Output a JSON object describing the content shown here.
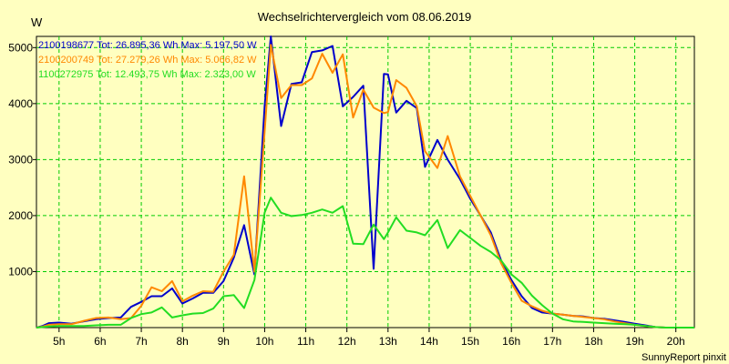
{
  "chart_data": {
    "type": "line",
    "title": "Wechselrichtervergleich vom 08.06.2019",
    "ylabel": "W",
    "xlabel": "",
    "xlim": [
      4.45,
      20.45
    ],
    "ylim": [
      0,
      5200
    ],
    "grid": true,
    "legend_position": "top-left",
    "x_ticks": [
      5,
      6,
      7,
      8,
      9,
      10,
      11,
      12,
      13,
      14,
      15,
      16,
      17,
      18,
      19,
      20
    ],
    "x_tick_labels": [
      "5h",
      "6h",
      "7h",
      "8h",
      "9h",
      "10h",
      "11h",
      "12h",
      "13h",
      "14h",
      "15h",
      "16h",
      "17h",
      "18h",
      "19h",
      "20h"
    ],
    "y_ticks": [
      1000,
      2000,
      3000,
      4000,
      5000
    ],
    "y_tick_labels": [
      "1000",
      "2000",
      "3000",
      "4000",
      "5000"
    ],
    "series": [
      {
        "name": "2100198677 Tot: 26.895,36 Wh Max: 5.197,50 W",
        "color": "#0000cc",
        "x": [
          4.45,
          4.6,
          4.75,
          5.0,
          5.3,
          5.6,
          5.9,
          6.2,
          6.5,
          6.75,
          7.0,
          7.25,
          7.5,
          7.75,
          8.0,
          8.25,
          8.5,
          8.75,
          9.0,
          9.25,
          9.5,
          9.75,
          10.0,
          10.15,
          10.4,
          10.65,
          10.9,
          11.15,
          11.4,
          11.65,
          11.9,
          12.15,
          12.4,
          12.65,
          12.9,
          13.0,
          13.2,
          13.45,
          13.7,
          13.9,
          14.2,
          14.45,
          14.75,
          15.0,
          15.25,
          15.5,
          15.75,
          16.0,
          16.25,
          16.5,
          16.75,
          17.0,
          17.25,
          17.5,
          17.75,
          18.0,
          18.25,
          18.5,
          18.75,
          19.0,
          19.25,
          19.5,
          19.75,
          20.0,
          20.25,
          20.45
        ],
        "values": [
          0,
          30,
          80,
          90,
          70,
          110,
          150,
          170,
          180,
          370,
          460,
          560,
          560,
          700,
          430,
          520,
          620,
          620,
          830,
          1250,
          1830,
          950,
          3950,
          5200,
          3600,
          4350,
          4380,
          4920,
          4950,
          5030,
          3950,
          4120,
          4320,
          1050,
          4530,
          4520,
          3840,
          4050,
          3920,
          2870,
          3350,
          3000,
          2650,
          2300,
          2000,
          1700,
          1200,
          850,
          560,
          350,
          270,
          250,
          230,
          210,
          200,
          170,
          160,
          130,
          100,
          70,
          40,
          10,
          0,
          0,
          0,
          0
        ]
      },
      {
        "name": "2100200749 Tot: 27.279,26 Wh Max: 5.066,82 W",
        "color": "#ff8800",
        "x": [
          4.45,
          4.6,
          4.75,
          5.0,
          5.3,
          5.6,
          5.9,
          6.2,
          6.5,
          6.75,
          7.0,
          7.25,
          7.5,
          7.75,
          8.0,
          8.25,
          8.5,
          8.75,
          9.0,
          9.25,
          9.5,
          9.75,
          10.0,
          10.15,
          10.4,
          10.65,
          10.9,
          11.15,
          11.4,
          11.65,
          11.9,
          12.15,
          12.4,
          12.65,
          12.9,
          13.0,
          13.2,
          13.45,
          13.7,
          13.9,
          14.2,
          14.45,
          14.75,
          15.0,
          15.25,
          15.5,
          15.75,
          16.0,
          16.25,
          16.5,
          16.75,
          17.0,
          17.25,
          17.5,
          17.75,
          18.0,
          18.25,
          18.5,
          18.75,
          19.0,
          19.25,
          19.5,
          19.75,
          20.0,
          20.25,
          20.45
        ],
        "values": [
          0,
          20,
          50,
          60,
          60,
          120,
          170,
          180,
          150,
          170,
          390,
          720,
          650,
          830,
          470,
          570,
          650,
          640,
          1000,
          1300,
          2700,
          1000,
          3500,
          5050,
          4100,
          4330,
          4330,
          4450,
          4890,
          4550,
          4880,
          3750,
          4250,
          3930,
          3830,
          3850,
          4420,
          4280,
          3950,
          3150,
          2850,
          3420,
          2700,
          2350,
          2000,
          1650,
          1150,
          800,
          480,
          380,
          300,
          250,
          230,
          210,
          190,
          170,
          150,
          110,
          80,
          50,
          30,
          10,
          0,
          0,
          0,
          0
        ]
      },
      {
        "name": "1100272975 Tot: 12.493,75 Wh Max: 2.323,00 W",
        "color": "#22dd22",
        "x": [
          4.45,
          4.6,
          4.75,
          5.0,
          5.3,
          5.6,
          5.9,
          6.2,
          6.5,
          6.75,
          7.0,
          7.25,
          7.5,
          7.75,
          8.0,
          8.25,
          8.5,
          8.75,
          9.0,
          9.25,
          9.5,
          9.75,
          10.0,
          10.15,
          10.4,
          10.65,
          10.9,
          11.15,
          11.4,
          11.65,
          11.9,
          12.15,
          12.4,
          12.65,
          12.9,
          13.0,
          13.2,
          13.45,
          13.7,
          13.9,
          14.2,
          14.45,
          14.75,
          15.0,
          15.25,
          15.5,
          15.75,
          16.0,
          16.25,
          16.5,
          16.75,
          17.0,
          17.25,
          17.5,
          17.75,
          18.0,
          18.25,
          18.5,
          18.75,
          19.0,
          19.25,
          19.5,
          19.75,
          20.0,
          20.25,
          20.45
        ],
        "values": [
          0,
          10,
          20,
          30,
          30,
          30,
          40,
          50,
          50,
          170,
          240,
          270,
          360,
          180,
          220,
          250,
          260,
          340,
          560,
          580,
          350,
          850,
          2050,
          2320,
          2050,
          1990,
          2010,
          2050,
          2110,
          2050,
          2170,
          1500,
          1490,
          1840,
          1580,
          1700,
          1970,
          1730,
          1700,
          1650,
          1920,
          1420,
          1740,
          1600,
          1460,
          1350,
          1200,
          950,
          800,
          570,
          400,
          250,
          150,
          110,
          100,
          90,
          80,
          70,
          60,
          50,
          30,
          10,
          0,
          0,
          0,
          0
        ]
      }
    ]
  },
  "footer": "SunnyReport pinxit"
}
